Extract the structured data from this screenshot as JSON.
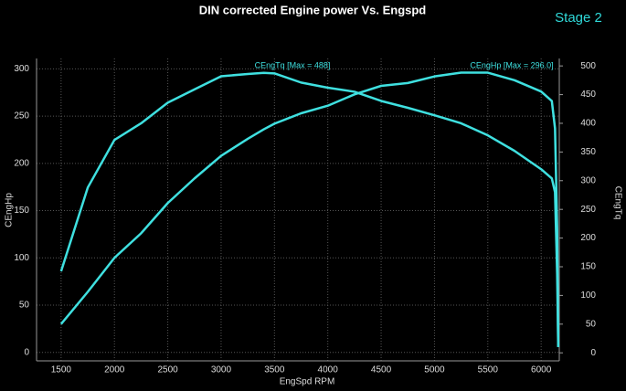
{
  "chart_data": {
    "type": "line",
    "title": "DIN corrected Engine power Vs. Engspd",
    "annotations": [
      "Stage 2",
      "CEngTq [Max = 488]",
      "CEngHp [Max = 296.0]"
    ],
    "x_label": "EngSpd RPM",
    "y_label": "CEngHp",
    "y2_label": "CEngTq",
    "x": [
      1500,
      1750,
      2000,
      2250,
      2500,
      2750,
      3000,
      3250,
      3400,
      3500,
      3750,
      4000,
      4250,
      4500,
      4750,
      5000,
      5250,
      5500,
      5750,
      6000,
      6100,
      6130,
      6150,
      6160
    ],
    "series": [
      {
        "name": "CEngHp",
        "color": "#3fe0e0",
        "values": [
          30,
          64,
          100,
          126,
          158,
          184,
          208,
          226,
          236,
          242,
          253,
          261,
          273,
          282,
          285,
          292,
          296,
          296,
          288,
          276,
          266,
          237,
          131,
          6
        ]
      },
      {
        "name": "CEngTq",
        "color": "#3fe0e0",
        "axis": "y2",
        "values": [
          142,
          288,
          371,
          400,
          436,
          459,
          482,
          486,
          488,
          487,
          471,
          462,
          455,
          439,
          427,
          414,
          400,
          379,
          352,
          320,
          304,
          280,
          137,
          10
        ]
      }
    ],
    "xlim": [
      1270,
      6170
    ],
    "xticks": [
      1500,
      2000,
      2500,
      3000,
      3500,
      4000,
      4500,
      5000,
      5500,
      6000
    ],
    "ylim": [
      -9,
      311
    ],
    "yticks": [
      0,
      50,
      100,
      150,
      200,
      250,
      300
    ],
    "y2lim": [
      -14,
      513
    ],
    "y2ticks": [
      0,
      50,
      100,
      150,
      200,
      250,
      300,
      350,
      400,
      450,
      500
    ],
    "grid": true
  }
}
